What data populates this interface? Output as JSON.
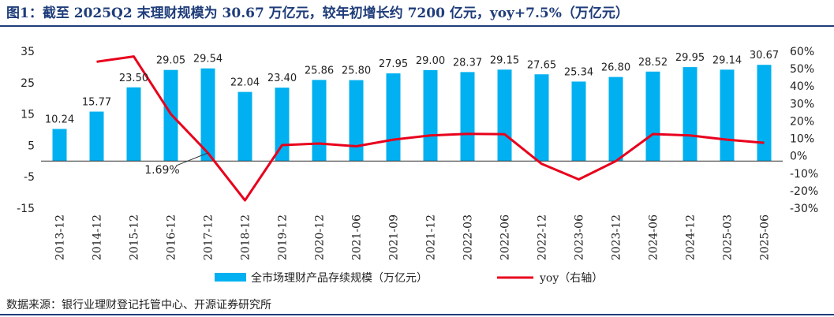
{
  "title": "图1：截至 2025Q2 末理财规模为 30.67 万亿元，较年初增长约 7200 亿元，yoy+7.5%（万亿元）",
  "source": "数据来源：银行业理财登记托管中心、开源证券研究所",
  "colors": {
    "bar": "#00b0f0",
    "line": "#e8001c",
    "title": "#1f3d7a"
  },
  "chart_data": {
    "type": "bar",
    "categories": [
      "2013-12",
      "2014-12",
      "2015-12",
      "2016-12",
      "2017-12",
      "2018-12",
      "2019-12",
      "2020-12",
      "2021-06",
      "2021-09",
      "2021-12",
      "2022-03",
      "2022-06",
      "2022-12",
      "2023-06",
      "2023-12",
      "2024-06",
      "2024-12",
      "2025-03",
      "2025-06"
    ],
    "series": [
      {
        "name": "全市场理财产品存续规模（万亿元）",
        "type": "bar",
        "axis": "left",
        "values": [
          10.24,
          15.77,
          23.5,
          29.05,
          29.54,
          22.04,
          23.4,
          25.86,
          25.8,
          27.95,
          29.0,
          28.37,
          29.15,
          27.65,
          25.34,
          26.8,
          28.52,
          29.95,
          29.14,
          30.67
        ],
        "labels": [
          "10.24",
          "15.77",
          "23.50",
          "29.05",
          "29.54",
          "22.04",
          "23.40",
          "25.86",
          "25.80",
          "27.95",
          "29.00",
          "28.37",
          "29.15",
          "27.65",
          "25.34",
          "26.80",
          "28.52",
          "29.95",
          "29.14",
          "30.67"
        ]
      },
      {
        "name": "yoy（右轴）",
        "type": "line",
        "axis": "right",
        "values": [
          null,
          0.54,
          0.57,
          0.24,
          0.0169,
          -0.255,
          0.062,
          0.071,
          0.055,
          0.093,
          0.117,
          0.126,
          0.124,
          -0.046,
          -0.135,
          -0.03,
          0.125,
          0.117,
          0.093,
          0.075
        ]
      }
    ],
    "annotations": [
      {
        "text": "1.69%",
        "category": "2017-12",
        "value": 0.0169
      }
    ],
    "y_left": {
      "ylim": [
        -15,
        35
      ],
      "ticks": [
        "35",
        "25",
        "15",
        "5",
        "-5",
        "-15"
      ]
    },
    "y_right": {
      "ylim": [
        -0.3,
        0.6
      ],
      "ticks": [
        "60%",
        "50%",
        "40%",
        "30%",
        "20%",
        "10%",
        "0%",
        "-10%",
        "-20%",
        "-30%"
      ]
    },
    "grid": false,
    "legend": "bottom"
  }
}
